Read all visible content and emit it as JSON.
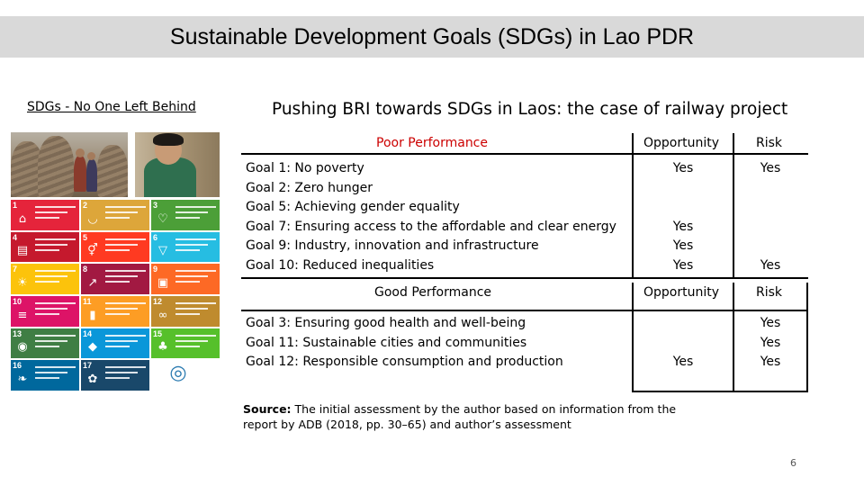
{
  "slide_title": "Sustainable Development Goals (SDGs) in Lao PDR",
  "left_heading": "SDGs - No One Left Behind",
  "right_heading": "Pushing BRI towards SDGs in Laos: the case of railway project",
  "sdg_tiles": [
    {
      "num": "1",
      "color": "#e5243b",
      "icon": "family-icon"
    },
    {
      "num": "2",
      "color": "#dda63a",
      "icon": "bowl-icon"
    },
    {
      "num": "3",
      "color": "#4c9f38",
      "icon": "heartbeat-icon"
    },
    {
      "num": "4",
      "color": "#c5192d",
      "icon": "book-icon"
    },
    {
      "num": "5",
      "color": "#ff3a21",
      "icon": "gender-icon"
    },
    {
      "num": "6",
      "color": "#26bde2",
      "icon": "water-icon"
    },
    {
      "num": "7",
      "color": "#fcc30b",
      "icon": "sun-icon"
    },
    {
      "num": "8",
      "color": "#a21942",
      "icon": "growth-chart-icon"
    },
    {
      "num": "9",
      "color": "#fd6925",
      "icon": "cubes-icon"
    },
    {
      "num": "10",
      "color": "#dd1367",
      "icon": "equality-icon"
    },
    {
      "num": "11",
      "color": "#fd9d24",
      "icon": "buildings-icon"
    },
    {
      "num": "12",
      "color": "#bf8b2e",
      "icon": "infinity-icon"
    },
    {
      "num": "13",
      "color": "#3f7e44",
      "icon": "eye-globe-icon"
    },
    {
      "num": "14",
      "color": "#0a97d9",
      "icon": "fish-icon"
    },
    {
      "num": "15",
      "color": "#56c02b",
      "icon": "tree-icon"
    },
    {
      "num": "16",
      "color": "#00689d",
      "icon": "dove-icon"
    },
    {
      "num": "17",
      "color": "#19486a",
      "icon": "flower-icon"
    },
    {
      "num": "",
      "color": "#ffffff",
      "icon": "sdg-wheel-icon"
    }
  ],
  "table": {
    "poor_header": "Poor Performance",
    "good_header": "Good Performance",
    "opportunity_header": "Opportunity",
    "risk_header": "Risk",
    "poor_goals": [
      {
        "label": "Goal 1:",
        "text": " No poverty",
        "opportunity": "Yes",
        "risk": "Yes"
      },
      {
        "label": "Goal 2:",
        "text": " Zero hunger",
        "opportunity": "",
        "risk": ""
      },
      {
        "label": "Goal 5:",
        "text": " Achieving gender equality",
        "opportunity": "",
        "risk": ""
      },
      {
        "label": "Goal 7:",
        "text": " Ensuring access to the affordable and clear energy",
        "opportunity": "Yes",
        "risk": ""
      },
      {
        "label": "Goal 9:",
        "text": " Industry, innovation and infrastructure",
        "opportunity": "Yes",
        "risk": ""
      },
      {
        "label": "Goal 10:",
        "text": " Reduced inequalities",
        "opportunity": "Yes",
        "risk": "Yes"
      }
    ],
    "good_goals": [
      {
        "label": "Goal 3:",
        "text": " Ensuring good health and well-being",
        "opportunity": "",
        "risk": "Yes"
      },
      {
        "label": "Goal 11:",
        "text": " Sustainable cities and communities",
        "opportunity": "",
        "risk": "Yes"
      },
      {
        "label": "Goal 12:",
        "text": " Responsible consumption and production",
        "opportunity": "Yes",
        "risk": "Yes"
      }
    ]
  },
  "source": {
    "label": "Source:",
    "text": " The initial assessment by the author based on information from the report by ADB (2018, pp. 30–65) and author’s assessment"
  },
  "page_number": "6",
  "colors": {
    "title_bar": "#d9d9d9",
    "poor_header": "#cc0000"
  }
}
